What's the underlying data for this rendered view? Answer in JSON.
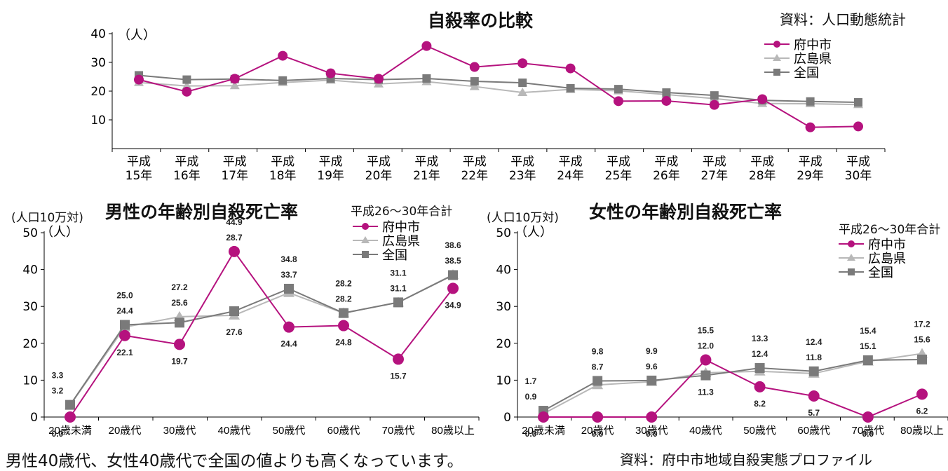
{
  "chart_data": [
    {
      "type": "line",
      "title": "自殺率の比較",
      "source": "資料：人口動態統計",
      "y_unit": "（人）",
      "categories": [
        [
          "平成",
          "15年"
        ],
        [
          "平成",
          "16年"
        ],
        [
          "平成",
          "17年"
        ],
        [
          "平成",
          "18年"
        ],
        [
          "平成",
          "19年"
        ],
        [
          "平成",
          "20年"
        ],
        [
          "平成",
          "21年"
        ],
        [
          "平成",
          "22年"
        ],
        [
          "平成",
          "23年"
        ],
        [
          "平成",
          "24年"
        ],
        [
          "平成",
          "25年"
        ],
        [
          "平成",
          "26年"
        ],
        [
          "平成",
          "27年"
        ],
        [
          "平成",
          "28年"
        ],
        [
          "平成",
          "29年"
        ],
        [
          "平成",
          "30年"
        ]
      ],
      "ylim": [
        0,
        40
      ],
      "yticks": [
        10,
        20,
        30,
        40
      ],
      "legend_position": "top-right",
      "series": [
        {
          "name": "府中市",
          "color": "#b5127e",
          "marker": "circle",
          "values": [
            24.0,
            19.8,
            24.3,
            32.3,
            26.2,
            24.3,
            35.7,
            28.4,
            29.7,
            27.9,
            16.5,
            16.6,
            15.2,
            17.2,
            7.4,
            7.7
          ]
        },
        {
          "name": "広島県",
          "color": "#b8b8b8",
          "marker": "triangle",
          "values": [
            23.0,
            21.8,
            21.9,
            23.0,
            23.8,
            22.5,
            23.3,
            21.6,
            19.5,
            20.6,
            20.1,
            18.8,
            17.4,
            15.7,
            15.6,
            15.3
          ]
        },
        {
          "name": "全国",
          "color": "#7a7a7a",
          "marker": "square",
          "values": [
            25.5,
            24.0,
            24.2,
            23.7,
            24.4,
            24.0,
            24.4,
            23.4,
            22.9,
            21.0,
            20.7,
            19.5,
            18.5,
            16.8,
            16.4,
            16.1
          ]
        }
      ]
    },
    {
      "type": "line",
      "title": "男性の年齢別自殺死亡率",
      "subtitle": "平成26～30年合計",
      "y_unit_top": "(人口10万対)",
      "y_unit": "（人）",
      "categories": [
        "20歳未満",
        "20歳代",
        "30歳代",
        "40歳代",
        "50歳代",
        "60歳代",
        "70歳代",
        "80歳以上"
      ],
      "ylim": [
        0,
        50
      ],
      "yticks": [
        0,
        10,
        20,
        30,
        40,
        50
      ],
      "legend_position": "top-center",
      "series": [
        {
          "name": "府中市",
          "color": "#b5127e",
          "marker": "circle",
          "values": [
            0.0,
            22.1,
            19.7,
            44.9,
            24.4,
            24.8,
            15.7,
            34.9
          ]
        },
        {
          "name": "広島県",
          "color": "#b8b8b8",
          "marker": "triangle",
          "values": [
            3.2,
            24.4,
            27.2,
            27.6,
            33.7,
            28.2,
            31.1,
            38.6
          ]
        },
        {
          "name": "全国",
          "color": "#7a7a7a",
          "marker": "square",
          "values": [
            3.3,
            25.0,
            25.6,
            28.7,
            34.8,
            28.2,
            31.1,
            38.5
          ]
        }
      ],
      "data_labels": [
        [
          "3.3",
          "3.2",
          "0.0"
        ],
        [
          "25.0",
          "24.4",
          "22.1"
        ],
        [
          "27.2",
          "25.6",
          "19.7"
        ],
        [
          "44.9",
          "28.7",
          "27.6"
        ],
        [
          "34.8",
          "33.7",
          "24.4"
        ],
        [
          "28.2",
          "28.2",
          "24.8"
        ],
        [
          "31.1",
          "31.1",
          "15.7"
        ],
        [
          "38.6",
          "38.5",
          "34.9"
        ]
      ]
    },
    {
      "type": "line",
      "title": "女性の年齢別自殺死亡率",
      "subtitle": "平成26～30年合計",
      "y_unit_top": "(人口10万対)",
      "y_unit": "（人）",
      "categories": [
        "20歳未満",
        "20歳代",
        "30歳代",
        "40歳代",
        "50歳代",
        "60歳代",
        "70歳代",
        "80歳以上"
      ],
      "ylim": [
        0,
        50
      ],
      "yticks": [
        0,
        10,
        20,
        30,
        40,
        50
      ],
      "legend_position": "top-right",
      "series": [
        {
          "name": "府中市",
          "color": "#b5127e",
          "marker": "circle",
          "values": [
            0.0,
            0.0,
            0.0,
            15.5,
            8.2,
            5.7,
            0.0,
            6.2
          ]
        },
        {
          "name": "広島県",
          "color": "#b8b8b8",
          "marker": "triangle",
          "values": [
            0.9,
            8.7,
            9.6,
            12.0,
            12.4,
            11.8,
            15.1,
            17.2
          ]
        },
        {
          "name": "全国",
          "color": "#7a7a7a",
          "marker": "square",
          "values": [
            1.7,
            9.8,
            9.9,
            11.3,
            13.3,
            12.4,
            15.4,
            15.6
          ]
        }
      ],
      "data_labels": [
        [
          "1.7",
          "0.9",
          "0.0"
        ],
        [
          "9.8",
          "8.7",
          "0.0"
        ],
        [
          "9.9",
          "9.6",
          "0.0"
        ],
        [
          "15.5",
          "12.0",
          "11.3"
        ],
        [
          "13.3",
          "12.4",
          "8.2"
        ],
        [
          "12.4",
          "11.8",
          "5.7"
        ],
        [
          "15.4",
          "15.1",
          "0.0"
        ],
        [
          "17.2",
          "15.6",
          "6.2"
        ]
      ]
    }
  ],
  "footer": {
    "note": "男性40歳代、女性40歳代で全国の値よりも高くなっています。",
    "source": "資料：府中市地域自殺実態プロファイル"
  }
}
